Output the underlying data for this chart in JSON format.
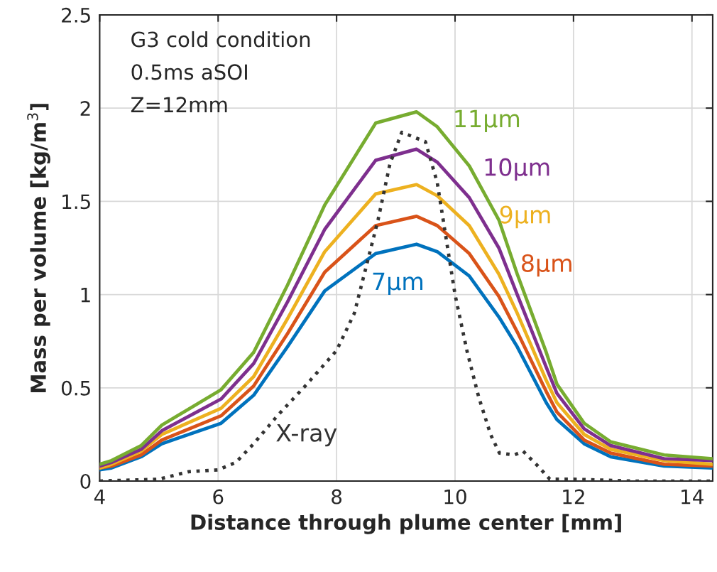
{
  "chart_data": {
    "type": "line",
    "xlabel": "Distance through plume center [mm]",
    "ylabel": "Mass per volume [kg/m$^{3}$]",
    "xlim": [
      4,
      14.35
    ],
    "xticks": [
      4,
      6,
      8,
      10,
      12,
      14
    ],
    "ylim": [
      0,
      2.5
    ],
    "yticks": [
      0,
      0.5,
      1,
      1.5,
      2,
      2.5
    ],
    "grid": true,
    "legend": false,
    "series": [
      {
        "name": "7µm",
        "color": "#0072bd",
        "x": [
          4,
          4.2,
          4.7,
          5.05,
          6.05,
          6.6,
          7.17,
          7.8,
          8.66,
          9.35,
          9.7,
          10.24,
          10.74,
          11.05,
          11.54,
          11.72,
          12.18,
          12.63,
          13.53,
          14.35
        ],
        "values": [
          0.06,
          0.07,
          0.13,
          0.2,
          0.31,
          0.46,
          0.72,
          1.02,
          1.22,
          1.27,
          1.23,
          1.1,
          0.88,
          0.72,
          0.42,
          0.33,
          0.2,
          0.13,
          0.08,
          0.07
        ]
      },
      {
        "name": "8µm",
        "color": "#d95319",
        "x": [
          4,
          4.2,
          4.7,
          5.05,
          6.05,
          6.6,
          7.17,
          7.8,
          8.66,
          9.35,
          9.7,
          10.24,
          10.74,
          11.05,
          11.54,
          11.72,
          12.18,
          12.63,
          13.53,
          14.35
        ],
        "values": [
          0.07,
          0.08,
          0.14,
          0.22,
          0.35,
          0.51,
          0.79,
          1.12,
          1.37,
          1.42,
          1.37,
          1.22,
          0.99,
          0.8,
          0.48,
          0.37,
          0.22,
          0.15,
          0.09,
          0.08
        ]
      },
      {
        "name": "9µm",
        "color": "#edb120",
        "x": [
          4,
          4.2,
          4.7,
          5.05,
          6.05,
          6.6,
          7.17,
          7.8,
          8.66,
          9.35,
          9.7,
          10.24,
          10.74,
          11.05,
          11.54,
          11.72,
          12.18,
          12.63,
          13.53,
          14.35
        ],
        "values": [
          0.07,
          0.09,
          0.16,
          0.25,
          0.39,
          0.56,
          0.87,
          1.23,
          1.54,
          1.59,
          1.53,
          1.37,
          1.11,
          0.9,
          0.54,
          0.42,
          0.25,
          0.17,
          0.11,
          0.09
        ]
      },
      {
        "name": "10µm",
        "color": "#7e2f8e",
        "x": [
          4,
          4.2,
          4.7,
          5.05,
          6.05,
          6.6,
          7.17,
          7.8,
          8.66,
          9.35,
          9.7,
          10.24,
          10.74,
          11.05,
          11.54,
          11.72,
          12.18,
          12.63,
          13.53,
          14.35
        ],
        "values": [
          0.08,
          0.1,
          0.17,
          0.27,
          0.44,
          0.63,
          0.96,
          1.35,
          1.72,
          1.78,
          1.71,
          1.52,
          1.25,
          1.0,
          0.61,
          0.47,
          0.28,
          0.19,
          0.12,
          0.11
        ]
      },
      {
        "name": "11µm",
        "color": "#77ac30",
        "x": [
          4,
          4.2,
          4.7,
          5.05,
          6.05,
          6.6,
          7.17,
          7.8,
          8.66,
          9.35,
          9.7,
          10.24,
          10.74,
          11.05,
          11.54,
          11.72,
          12.18,
          12.63,
          13.53,
          14.35
        ],
        "values": [
          0.09,
          0.11,
          0.19,
          0.3,
          0.49,
          0.69,
          1.05,
          1.48,
          1.92,
          1.98,
          1.9,
          1.69,
          1.4,
          1.11,
          0.69,
          0.52,
          0.31,
          0.21,
          0.14,
          0.12
        ]
      },
      {
        "name": "X-ray",
        "color": "#333333",
        "line_style": "dotted",
        "x": [
          4,
          5,
          5.5,
          6,
          6.3,
          6.6,
          7,
          7.5,
          8,
          8.3,
          8.5,
          8.7,
          8.9,
          9.1,
          9.5,
          9.7,
          9.9,
          10,
          10.2,
          10.4,
          10.6,
          10.75,
          11,
          11.15,
          11.4,
          11.6,
          12,
          13,
          14.35
        ],
        "values": [
          0,
          0.01,
          0.05,
          0.06,
          0.1,
          0.2,
          0.35,
          0.52,
          0.7,
          0.9,
          1.15,
          1.4,
          1.7,
          1.87,
          1.82,
          1.6,
          1.2,
          1,
          0.7,
          0.45,
          0.25,
          0.15,
          0.14,
          0.16,
          0.08,
          0.01,
          0.01,
          0,
          0
        ]
      }
    ],
    "annotations": [
      "G3 cold condition",
      "0.5ms aSOI",
      "Z=12mm"
    ]
  }
}
